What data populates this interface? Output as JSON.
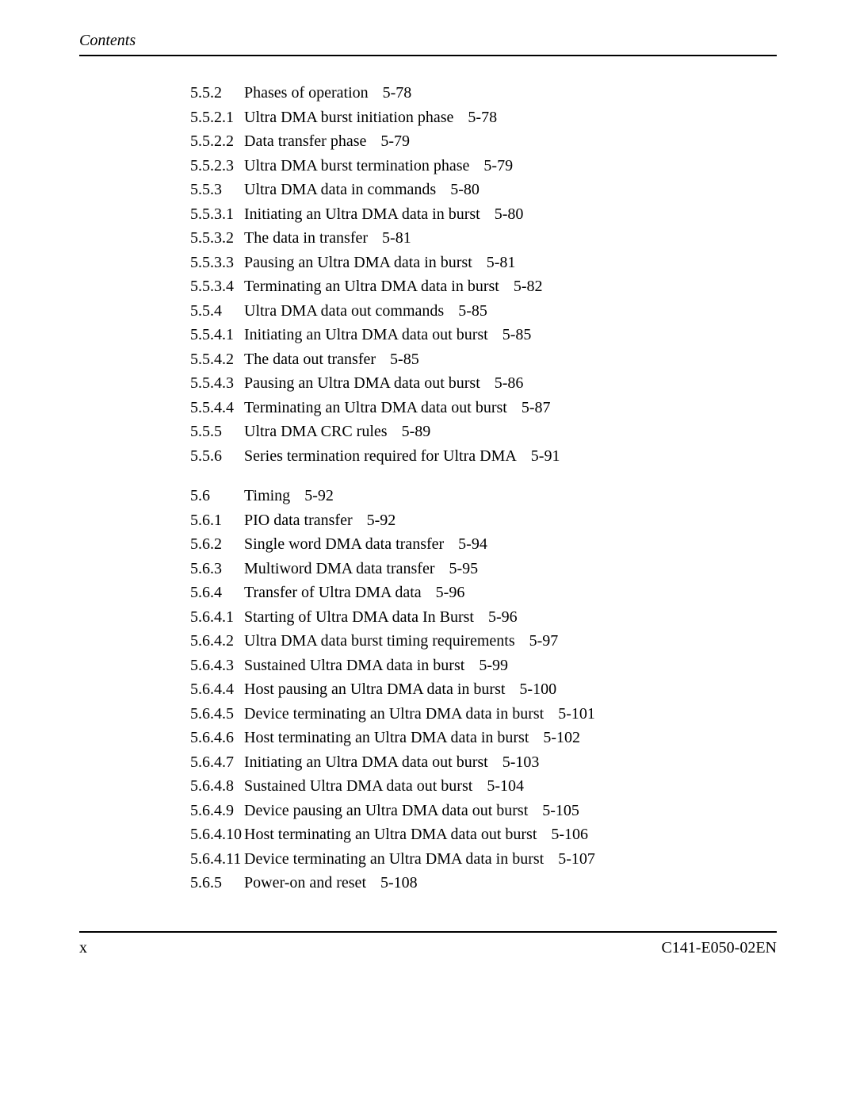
{
  "header": "Contents",
  "footer": {
    "left": "x",
    "right": "C141-E050-02EN"
  },
  "toc": [
    {
      "num": "5.5.2",
      "title": "Phases of operation",
      "page": "5-78"
    },
    {
      "num": "5.5.2.1",
      "title": "Ultra DMA burst initiation phase",
      "page": "5-78"
    },
    {
      "num": "5.5.2.2",
      "title": "Data transfer phase",
      "page": "5-79"
    },
    {
      "num": "5.5.2.3",
      "title": "Ultra DMA burst termination phase",
      "page": "5-79"
    },
    {
      "num": "5.5.3",
      "title": "Ultra DMA data in commands",
      "page": "5-80"
    },
    {
      "num": "5.5.3.1",
      "title": "Initiating an Ultra DMA data in burst",
      "page": "5-80"
    },
    {
      "num": "5.5.3.2",
      "title": "The data in transfer",
      "page": "5-81"
    },
    {
      "num": "5.5.3.3",
      "title": "Pausing an Ultra DMA data in burst",
      "page": "5-81"
    },
    {
      "num": "5.5.3.4",
      "title": "Terminating an Ultra DMA data in burst",
      "page": "5-82"
    },
    {
      "num": "5.5.4",
      "title": "Ultra DMA data out commands",
      "page": "5-85"
    },
    {
      "num": "5.5.4.1",
      "title": "Initiating an Ultra DMA data out burst",
      "page": "5-85"
    },
    {
      "num": "5.5.4.2",
      "title": "The data out transfer",
      "page": "5-85"
    },
    {
      "num": "5.5.4.3",
      "title": "Pausing an Ultra DMA data out burst",
      "page": "5-86"
    },
    {
      "num": "5.5.4.4",
      "title": "Terminating an Ultra DMA data out burst",
      "page": "5-87"
    },
    {
      "num": "5.5.5",
      "title": "Ultra DMA CRC rules",
      "page": "5-89"
    },
    {
      "num": "5.5.6",
      "title": "Series termination required for Ultra DMA",
      "page": "5-91"
    },
    {
      "gap": true
    },
    {
      "num": "5.6",
      "title": "Timing",
      "page": "5-92"
    },
    {
      "num": "5.6.1",
      "title": "PIO data transfer",
      "page": "5-92"
    },
    {
      "num": "5.6.2",
      "title": "Single word DMA data transfer",
      "page": "5-94"
    },
    {
      "num": "5.6.3",
      "title": "Multiword DMA data transfer",
      "page": "5-95"
    },
    {
      "num": "5.6.4",
      "title": "Transfer of Ultra DMA data",
      "page": "5-96"
    },
    {
      "num": "5.6.4.1",
      "title": "Starting of Ultra DMA data In Burst",
      "page": "5-96"
    },
    {
      "num": "5.6.4.2",
      "title": "Ultra DMA data burst timing requirements",
      "page": "5-97"
    },
    {
      "num": "5.6.4.3",
      "title": "Sustained Ultra DMA data in burst",
      "page": "5-99"
    },
    {
      "num": "5.6.4.4",
      "title": "Host pausing an Ultra DMA data in burst",
      "page": "5-100"
    },
    {
      "num": "5.6.4.5",
      "title": "Device terminating an Ultra DMA data in burst",
      "page": "5-101"
    },
    {
      "num": "5.6.4.6",
      "title": "Host terminating an Ultra DMA data in burst",
      "page": "5-102"
    },
    {
      "num": "5.6.4.7",
      "title": "Initiating an Ultra DMA data out burst",
      "page": "5-103"
    },
    {
      "num": "5.6.4.8",
      "title": "Sustained Ultra DMA data out burst",
      "page": "5-104"
    },
    {
      "num": "5.6.4.9",
      "title": "Device pausing an Ultra DMA data out burst",
      "page": "5-105"
    },
    {
      "num": "5.6.4.10",
      "title": "Host terminating an Ultra DMA data out burst",
      "page": "5-106"
    },
    {
      "num": "5.6.4.11",
      "title": "Device terminating an Ultra DMA data in burst",
      "page": "5-107"
    },
    {
      "num": "5.6.5",
      "title": "Power-on and reset",
      "page": "5-108"
    }
  ]
}
